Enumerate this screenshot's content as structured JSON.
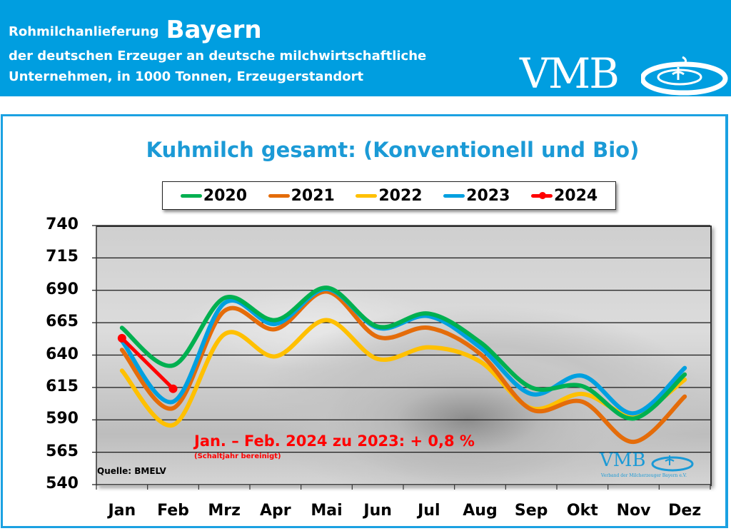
{
  "header": {
    "title_prefix": "Rohmilchanlieferung",
    "title_region": "Bayern",
    "subtitle_line1": "der deutschen Erzeuger an deutsche milchwirtschaftliche",
    "subtitle_line2": "Unternehmen, in 1000 Tonnen, Erzeugerstandort",
    "logo_text": "VMB"
  },
  "colors": {
    "brand_blue": "#009ee0",
    "title_blue": "#1b9ad6",
    "annotation_red": "#ff0000"
  },
  "annotation": {
    "main": "Jan. – Feb. 2024 zu 2023: + 0,8 %",
    "sub": "(Schaltjahr bereinigt)"
  },
  "source": "Quelle: BMELV",
  "watermark_logo": {
    "text": "VMB",
    "subtext": "Verband der Milcherzeuger Bayern e.V."
  },
  "chart_data": {
    "type": "line",
    "title": "Kuhmilch gesamt: (Konventionell und Bio)",
    "xlabel": "",
    "ylabel": "",
    "categories": [
      "Jan",
      "Feb",
      "Mrz",
      "Apr",
      "Mai",
      "Jun",
      "Jul",
      "Aug",
      "Sep",
      "Okt",
      "Nov",
      "Dez"
    ],
    "yticks": [
      740,
      715,
      690,
      665,
      640,
      615,
      590,
      565,
      540
    ],
    "ylim": [
      540,
      740
    ],
    "grid": true,
    "legend_position": "top",
    "series": [
      {
        "name": "2020",
        "color": "#00b050",
        "values": [
          661,
          632,
          684,
          667,
          692,
          662,
          672,
          650,
          615,
          616,
          591,
          625
        ]
      },
      {
        "name": "2021",
        "color": "#e46c0a",
        "values": [
          644,
          599,
          674,
          660,
          689,
          654,
          661,
          641,
          598,
          604,
          573,
          608
        ]
      },
      {
        "name": "2022",
        "color": "#ffc000",
        "values": [
          628,
          586,
          656,
          639,
          667,
          637,
          646,
          635,
          599,
          610,
          594,
          621
        ]
      },
      {
        "name": "2023",
        "color": "#00a0e0",
        "values": [
          651,
          604,
          680,
          664,
          691,
          661,
          670,
          646,
          610,
          624,
          595,
          630
        ]
      },
      {
        "name": "2024",
        "color": "#ff0000",
        "values": [
          653,
          614
        ],
        "markers": true
      }
    ]
  }
}
